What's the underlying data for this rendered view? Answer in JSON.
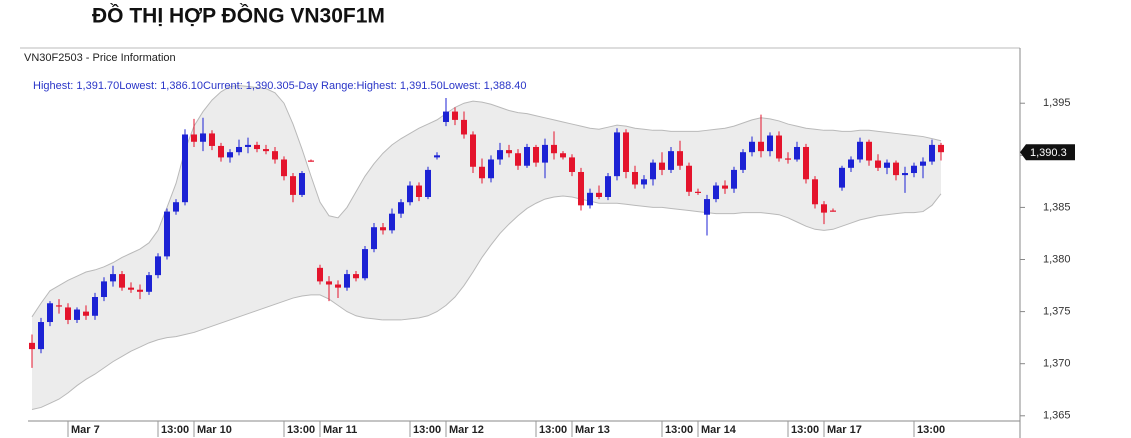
{
  "chart_data": {
    "type": "candlestick",
    "title": "ĐỒ THỊ HỢP ĐỒNG VN30F1M",
    "panel_title": "VN30F2503 - Price Information",
    "info_line": "Highest: 1,391.70Lowest: 1,386.10Current: 1,390.305-Day Range:Highest: 1,391.50Lowest: 1,388.40",
    "up_color": "#1c22d4",
    "down_color": "#e4142c",
    "band_color": "#ececec",
    "band_line_color": "#b9b9b9",
    "ylim": [
      1364.5,
      1400.3
    ],
    "yticks": [
      {
        "value": 1365,
        "label": "1,365"
      },
      {
        "value": 1370,
        "label": "1,370"
      },
      {
        "value": 1375,
        "label": "1,375"
      },
      {
        "value": 1380,
        "label": "1,380"
      },
      {
        "value": 1385,
        "label": "1,385"
      },
      {
        "value": 1390,
        "label": "1,390"
      },
      {
        "value": 1395,
        "label": "1,395"
      }
    ],
    "last_price": {
      "value": 1390.3,
      "label": "1,390.3"
    },
    "categories": [
      null,
      null,
      null,
      null,
      "Mar 7",
      null,
      null,
      null,
      null,
      null,
      null,
      null,
      null,
      null,
      "13:00",
      null,
      null,
      null,
      "Mar 10",
      null,
      null,
      null,
      null,
      null,
      null,
      null,
      null,
      null,
      "13:00",
      null,
      null,
      null,
      "Mar 11",
      null,
      null,
      null,
      null,
      null,
      null,
      null,
      null,
      null,
      "13:00",
      null,
      null,
      null,
      "Mar 12",
      null,
      null,
      null,
      null,
      null,
      null,
      null,
      null,
      null,
      "13:00",
      null,
      null,
      null,
      "Mar 13",
      null,
      null,
      null,
      null,
      null,
      null,
      null,
      null,
      null,
      "13:00",
      null,
      null,
      null,
      "Mar 14",
      null,
      null,
      null,
      null,
      null,
      null,
      null,
      null,
      null,
      "13:00",
      null,
      null,
      null,
      "Mar 17",
      null,
      null,
      null,
      null,
      null,
      null,
      null,
      null,
      null,
      "13:00",
      null,
      null,
      null
    ],
    "open": [
      1372.0,
      1371.4,
      1374.0,
      1375.6,
      1375.4,
      1374.2,
      1375.0,
      1374.6,
      1376.4,
      1377.9,
      1378.6,
      1377.3,
      1377.1,
      1376.9,
      1378.5,
      1380.3,
      1384.6,
      1385.5,
      1392.0,
      1391.3,
      1392.1,
      1390.9,
      1389.8,
      1390.3,
      1390.8,
      1391.0,
      1390.6,
      1390.4,
      1389.6,
      1388.0,
      1386.2,
      1389.5,
      1379.2,
      1377.9,
      1377.6,
      1377.3,
      1378.6,
      1378.2,
      1381.0,
      1383.1,
      1382.8,
      1384.4,
      1385.5,
      1387.1,
      1386.0,
      1389.8,
      1393.2,
      1394.2,
      1393.4,
      1392.0,
      1388.9,
      1387.8,
      1389.6,
      1390.5,
      1390.2,
      1389.0,
      1390.8,
      1389.3,
      1391.0,
      1390.2,
      1389.8,
      1388.4,
      1385.2,
      1386.4,
      1386.0,
      1388.0,
      1392.2,
      1388.4,
      1387.2,
      1387.7,
      1389.3,
      1388.6,
      1390.4,
      1389.0,
      1386.5,
      1384.3,
      1385.8,
      1387.1,
      1386.8,
      1388.6,
      1390.3,
      1391.3,
      1390.4,
      1391.9,
      1389.7,
      1389.6,
      1390.8,
      1387.7,
      1385.3,
      1384.7,
      1386.9,
      1388.8,
      1389.6,
      1391.3,
      1389.5,
      1388.8,
      1389.3,
      1388.1,
      1388.3,
      1389.0,
      1389.4,
      1391.0
    ],
    "high": [
      1372.8,
      1374.4,
      1376.0,
      1376.2,
      1375.8,
      1375.4,
      1375.6,
      1376.8,
      1378.3,
      1379.4,
      1378.9,
      1377.8,
      1377.6,
      1378.8,
      1380.6,
      1384.9,
      1385.8,
      1392.5,
      1393.5,
      1393.6,
      1392.4,
      1391.2,
      1390.6,
      1391.5,
      1391.7,
      1391.3,
      1391.0,
      1390.8,
      1389.9,
      1388.3,
      1388.5,
      1389.6,
      1379.5,
      1378.4,
      1378.0,
      1379.0,
      1378.9,
      1381.3,
      1383.5,
      1383.5,
      1384.9,
      1385.8,
      1387.5,
      1387.4,
      1388.9,
      1390.3,
      1395.5,
      1394.6,
      1394.2,
      1392.3,
      1389.7,
      1390.0,
      1391.2,
      1391.0,
      1390.6,
      1391.1,
      1391.0,
      1391.6,
      1392.3,
      1390.4,
      1390.1,
      1388.8,
      1386.8,
      1387.1,
      1388.3,
      1392.6,
      1392.5,
      1389.0,
      1388.1,
      1389.6,
      1390.3,
      1390.8,
      1391.4,
      1389.3,
      1386.8,
      1386.2,
      1387.4,
      1387.6,
      1388.9,
      1390.6,
      1391.8,
      1393.9,
      1392.2,
      1392.3,
      1390.3,
      1391.3,
      1391.1,
      1388.0,
      1385.6,
      1384.9,
      1389.0,
      1389.9,
      1391.7,
      1391.5,
      1390.1,
      1389.6,
      1389.5,
      1388.9,
      1389.3,
      1389.8,
      1391.5,
      1391.2
    ],
    "low": [
      1369.6,
      1371.0,
      1373.6,
      1374.8,
      1373.8,
      1373.9,
      1374.2,
      1374.2,
      1376.0,
      1377.4,
      1377.0,
      1376.8,
      1376.2,
      1376.6,
      1378.2,
      1380.0,
      1384.3,
      1385.2,
      1390.8,
      1390.4,
      1390.5,
      1389.4,
      1389.3,
      1390.0,
      1390.2,
      1390.3,
      1390.1,
      1389.2,
      1387.6,
      1385.5,
      1386.0,
      1389.4,
      1377.6,
      1376.0,
      1376.3,
      1377.0,
      1377.9,
      1378.0,
      1380.7,
      1382.4,
      1382.5,
      1384.0,
      1385.2,
      1385.6,
      1385.8,
      1389.6,
      1392.8,
      1392.9,
      1391.6,
      1388.3,
      1387.3,
      1387.4,
      1389.1,
      1389.8,
      1388.6,
      1388.8,
      1388.9,
      1387.8,
      1389.6,
      1389.6,
      1388.0,
      1384.7,
      1384.9,
      1385.8,
      1385.7,
      1387.6,
      1387.8,
      1386.8,
      1386.8,
      1387.1,
      1388.1,
      1388.3,
      1388.6,
      1386.1,
      1386.2,
      1382.3,
      1385.5,
      1386.3,
      1386.4,
      1388.3,
      1389.9,
      1389.8,
      1389.9,
      1389.4,
      1389.2,
      1389.4,
      1387.3,
      1384.9,
      1383.4,
      1384.6,
      1386.6,
      1388.4,
      1389.3,
      1389.0,
      1388.5,
      1388.2,
      1387.6,
      1386.4,
      1387.9,
      1387.8,
      1389.1,
      1389.5
    ],
    "close": [
      1371.4,
      1374.0,
      1375.8,
      1375.5,
      1374.2,
      1375.2,
      1374.6,
      1376.4,
      1377.9,
      1378.6,
      1377.3,
      1377.1,
      1376.9,
      1378.5,
      1380.3,
      1384.6,
      1385.5,
      1392.0,
      1391.3,
      1392.1,
      1390.9,
      1389.8,
      1390.3,
      1390.8,
      1391.0,
      1390.6,
      1390.4,
      1389.6,
      1388.0,
      1386.2,
      1388.3,
      1389.5,
      1377.9,
      1377.6,
      1377.3,
      1378.6,
      1378.2,
      1381.0,
      1383.1,
      1382.8,
      1384.4,
      1385.5,
      1387.1,
      1386.0,
      1388.6,
      1390.0,
      1394.2,
      1393.4,
      1392.0,
      1388.9,
      1387.8,
      1389.6,
      1390.5,
      1390.2,
      1389.0,
      1390.8,
      1389.3,
      1391.0,
      1390.2,
      1389.8,
      1388.4,
      1385.2,
      1386.4,
      1386.0,
      1388.0,
      1392.2,
      1388.4,
      1387.2,
      1387.7,
      1389.3,
      1388.6,
      1390.4,
      1389.0,
      1386.5,
      1386.4,
      1385.8,
      1387.1,
      1386.8,
      1388.6,
      1390.3,
      1391.3,
      1390.4,
      1391.9,
      1389.7,
      1389.6,
      1390.8,
      1387.7,
      1385.3,
      1384.5,
      1384.7,
      1388.8,
      1389.6,
      1391.3,
      1389.5,
      1388.8,
      1389.3,
      1388.1,
      1388.3,
      1389.0,
      1389.4,
      1391.0,
      1390.3
    ],
    "band_upper": [
      1374.5,
      1375.8,
      1377.0,
      1377.5,
      1378.0,
      1378.4,
      1378.8,
      1379.0,
      1379.3,
      1379.7,
      1380.2,
      1380.6,
      1381.0,
      1381.6,
      1382.8,
      1385.0,
      1387.3,
      1390.5,
      1392.8,
      1394.2,
      1395.3,
      1396.1,
      1396.6,
      1396.7,
      1396.6,
      1396.5,
      1396.4,
      1396.0,
      1395.0,
      1393.0,
      1390.6,
      1388.0,
      1385.5,
      1384.2,
      1384.0,
      1385.0,
      1386.5,
      1388.0,
      1389.2,
      1390.2,
      1391.0,
      1391.6,
      1392.1,
      1392.6,
      1393.0,
      1393.4,
      1394.0,
      1394.6,
      1395.0,
      1395.2,
      1395.1,
      1394.9,
      1394.6,
      1394.3,
      1394.1,
      1394.0,
      1393.8,
      1393.6,
      1393.4,
      1393.2,
      1393.0,
      1392.8,
      1392.6,
      1392.5,
      1392.7,
      1392.9,
      1392.8,
      1392.6,
      1392.5,
      1392.4,
      1392.4,
      1392.3,
      1392.3,
      1392.3,
      1392.3,
      1392.4,
      1392.5,
      1392.6,
      1392.8,
      1393.1,
      1393.4,
      1393.6,
      1393.5,
      1393.3,
      1393.0,
      1392.8,
      1392.6,
      1392.5,
      1392.4,
      1392.4,
      1392.3,
      1392.3,
      1392.4,
      1392.4,
      1392.3,
      1392.2,
      1392.1,
      1392.0,
      1391.9,
      1391.8,
      1391.6,
      1391.4
    ],
    "band_lower": [
      1365.6,
      1365.8,
      1366.2,
      1366.6,
      1367.2,
      1367.9,
      1368.5,
      1369.0,
      1369.6,
      1370.2,
      1370.7,
      1371.2,
      1371.6,
      1372.0,
      1372.3,
      1372.5,
      1372.6,
      1372.8,
      1373.0,
      1373.3,
      1373.6,
      1373.9,
      1374.2,
      1374.5,
      1374.8,
      1375.1,
      1375.4,
      1375.7,
      1376.0,
      1376.3,
      1376.5,
      1376.6,
      1376.6,
      1376.2,
      1375.6,
      1375.0,
      1374.6,
      1374.4,
      1374.3,
      1374.2,
      1374.2,
      1374.2,
      1374.3,
      1374.4,
      1374.6,
      1375.0,
      1375.6,
      1376.4,
      1377.5,
      1378.8,
      1380.2,
      1381.4,
      1382.5,
      1383.4,
      1384.2,
      1384.9,
      1385.4,
      1385.8,
      1386.0,
      1386.1,
      1386.0,
      1385.8,
      1385.6,
      1385.4,
      1385.4,
      1385.4,
      1385.3,
      1385.2,
      1385.1,
      1385.0,
      1385.0,
      1384.9,
      1384.8,
      1384.7,
      1384.6,
      1384.5,
      1384.4,
      1384.4,
      1384.4,
      1384.5,
      1384.5,
      1384.5,
      1384.4,
      1384.3,
      1384.0,
      1383.6,
      1383.2,
      1382.9,
      1382.8,
      1382.9,
      1383.2,
      1383.5,
      1383.8,
      1384.0,
      1384.2,
      1384.3,
      1384.4,
      1384.5,
      1384.5,
      1384.6,
      1385.2,
      1386.3
    ]
  }
}
